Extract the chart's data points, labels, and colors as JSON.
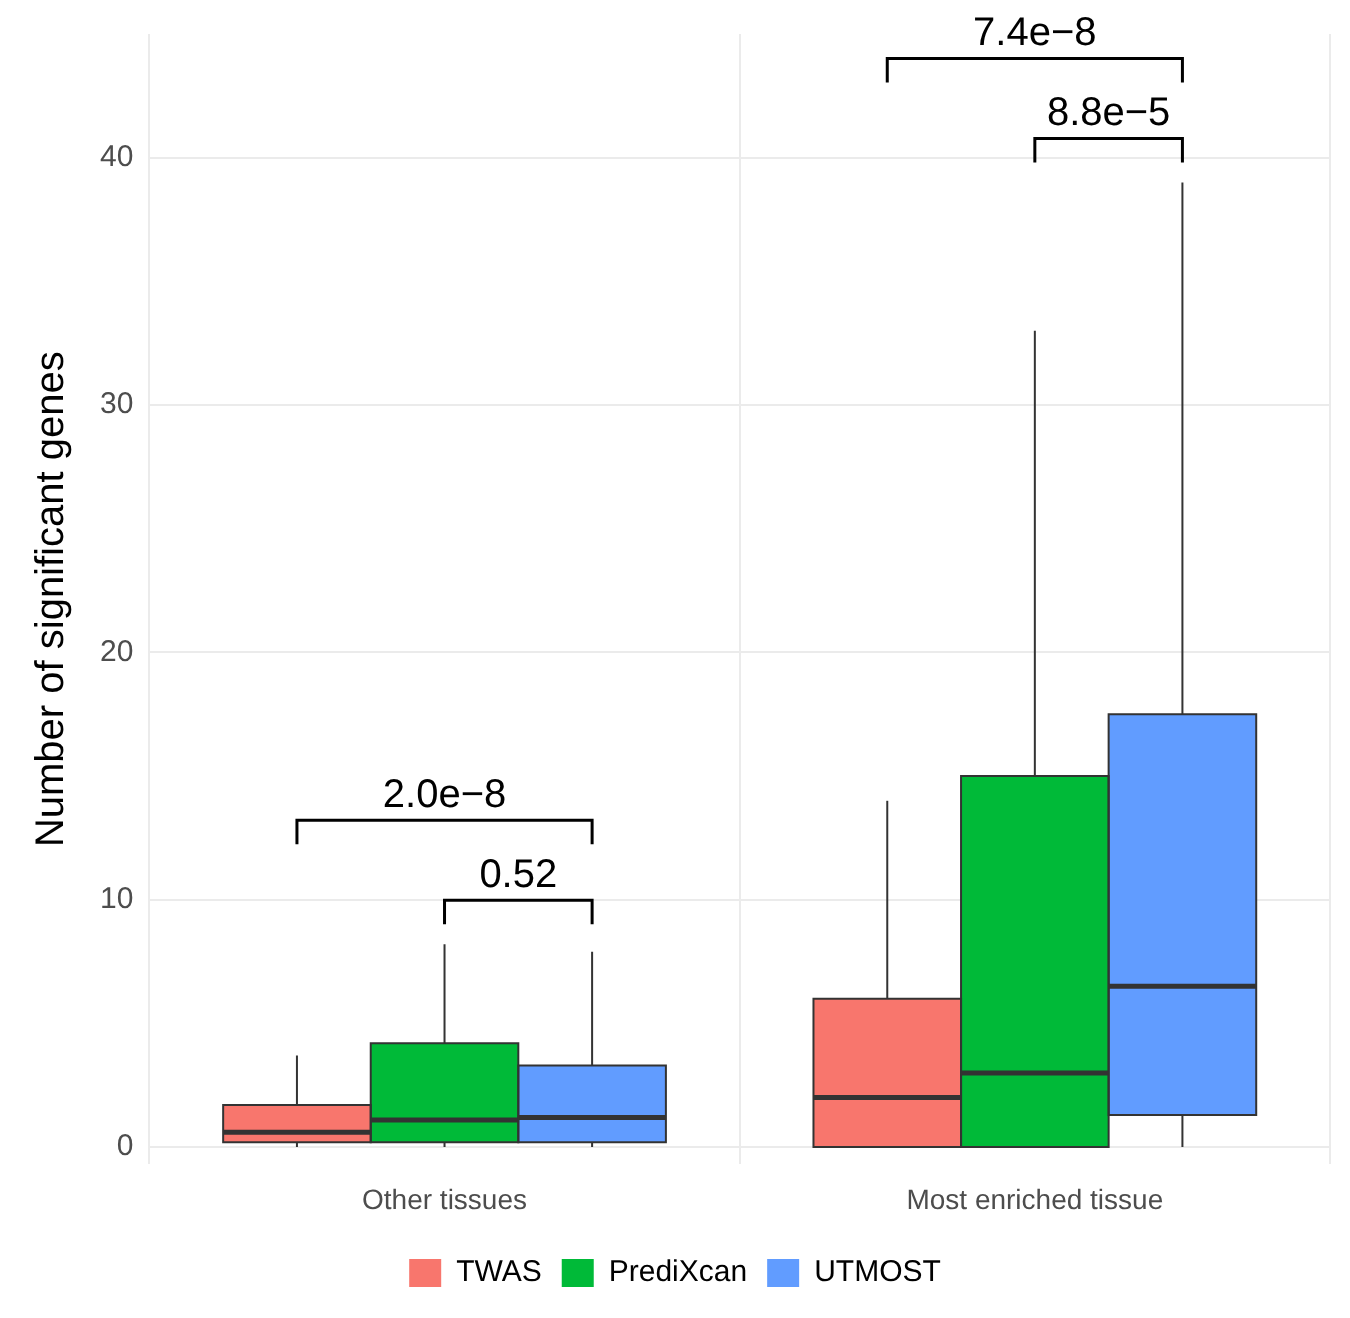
{
  "chart_data": {
    "type": "box",
    "ylabel": "Number of significant genes",
    "categories": [
      "Other tissues",
      "Most enriched tissue"
    ],
    "ylim": [
      -0.7,
      45
    ],
    "yticks": [
      0,
      10,
      20,
      30,
      40
    ],
    "grid": true,
    "legend": "bottom",
    "series": [
      {
        "name": "TWAS",
        "color": "#f8766d",
        "boxes": [
          {
            "low": 0,
            "q1": 0.2,
            "median": 0.6,
            "q3": 1.7,
            "high": 3.7
          },
          {
            "low": 0,
            "q1": 0,
            "median": 2.0,
            "q3": 6.0,
            "high": 14
          }
        ]
      },
      {
        "name": "PrediXcan",
        "color": "#00ba38",
        "boxes": [
          {
            "low": 0,
            "q1": 0.2,
            "median": 1.1,
            "q3": 4.2,
            "high": 8.2
          },
          {
            "low": 0,
            "q1": 0,
            "median": 3.0,
            "q3": 15.0,
            "high": 33
          }
        ]
      },
      {
        "name": "UTMOST",
        "color": "#619cff",
        "boxes": [
          {
            "low": 0,
            "q1": 0.2,
            "median": 1.2,
            "q3": 3.3,
            "high": 7.9
          },
          {
            "low": 0,
            "q1": 1.3,
            "median": 6.5,
            "q3": 17.5,
            "high": 39
          }
        ]
      }
    ],
    "annotations": [
      "2.0e−8",
      "0.52",
      "7.4e−8",
      "8.8e−5"
    ]
  }
}
